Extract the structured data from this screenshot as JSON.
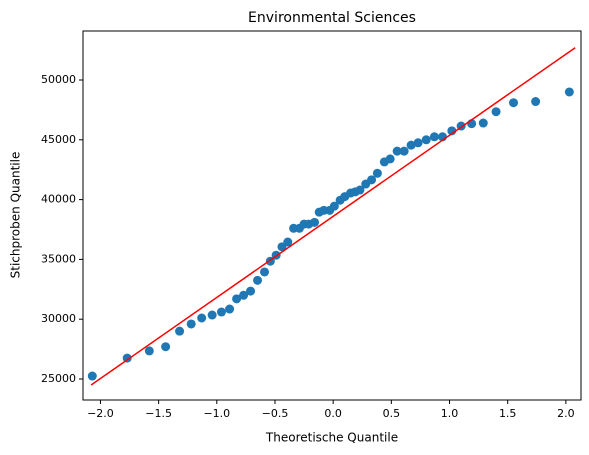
{
  "chart_data": {
    "type": "scatter",
    "title": "Environmental Sciences",
    "x_label": "Theoretische Quantile",
    "y_label": "Stichproben Quantile",
    "points": {
      "color": "#1f77b4",
      "x": [
        -2.07,
        -1.77,
        -1.58,
        -1.44,
        -1.32,
        -1.22,
        -1.13,
        -1.04,
        -0.96,
        -0.89,
        -0.83,
        -0.77,
        -0.71,
        -0.65,
        -0.59,
        -0.54,
        -0.49,
        -0.44,
        -0.39,
        -0.34,
        -0.29,
        -0.25,
        -0.21,
        -0.16,
        -0.12,
        -0.08,
        -0.03,
        0.01,
        0.06,
        0.1,
        0.15,
        0.19,
        0.23,
        0.28,
        0.33,
        0.38,
        0.44,
        0.49,
        0.55,
        0.61,
        0.67,
        0.73,
        0.8,
        0.87,
        0.94,
        1.02,
        1.1,
        1.19,
        1.29,
        1.4,
        1.55,
        1.74,
        2.03
      ],
      "y": [
        25250,
        26750,
        27350,
        27700,
        29000,
        29600,
        30100,
        30350,
        30600,
        30850,
        31700,
        32000,
        32350,
        33250,
        33950,
        34850,
        35350,
        36050,
        36450,
        37600,
        37600,
        37950,
        37950,
        38100,
        38950,
        39100,
        39100,
        39450,
        39950,
        40250,
        40550,
        40650,
        40800,
        41300,
        41650,
        42200,
        43150,
        43400,
        44050,
        44050,
        44550,
        44750,
        45000,
        45250,
        45250,
        45750,
        46150,
        46350,
        46400,
        47350,
        48100,
        48200,
        49000
      ]
    },
    "reference_line": {
      "color": "#ff0000",
      "x": [
        -2.08,
        2.08
      ],
      "y": [
        24500,
        52700
      ]
    },
    "xlim": [
      -2.15,
      2.13
    ],
    "ylim": [
      23244,
      54097
    ],
    "xticks": [
      {
        "value": -2,
        "label": "−2.0"
      },
      {
        "value": -1.5,
        "label": "−1.5"
      },
      {
        "value": -1,
        "label": "−1.0"
      },
      {
        "value": -0.5,
        "label": "−0.5"
      },
      {
        "value": 0,
        "label": "0.0"
      },
      {
        "value": 0.5,
        "label": "0.5"
      },
      {
        "value": 1,
        "label": "1.0"
      },
      {
        "value": 1.5,
        "label": "1.5"
      },
      {
        "value": 2,
        "label": "2.0"
      }
    ],
    "yticks": [
      25000,
      30000,
      35000,
      40000,
      45000,
      50000
    ]
  }
}
